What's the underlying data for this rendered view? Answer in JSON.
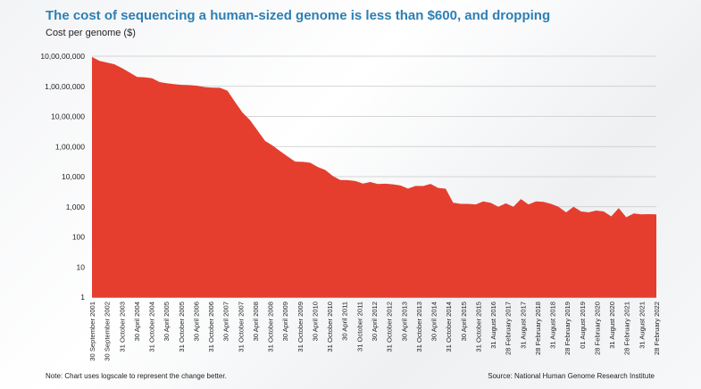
{
  "title": "The cost of sequencing a human-sized genome is less than $600, and dropping",
  "note": "Note: Chart uses logscale to represent the change better.",
  "source": "Source: National Human Genome Research Institute",
  "colors": {
    "title": "#2d7fb3",
    "area": "#e53e2f"
  },
  "chart_data": {
    "type": "area",
    "title": "The cost of sequencing a human-sized genome is less than $600, and dropping",
    "ylabel": "Cost per genome ($)",
    "xlabel": "",
    "y_scale": "log",
    "ylim": [
      1,
      100000000
    ],
    "grid": true,
    "y_ticks": [
      {
        "value": 1,
        "label": "1"
      },
      {
        "value": 10,
        "label": "10"
      },
      {
        "value": 100,
        "label": "100"
      },
      {
        "value": 1000,
        "label": "1,000"
      },
      {
        "value": 10000,
        "label": "10,000"
      },
      {
        "value": 100000,
        "label": "1,00,000"
      },
      {
        "value": 1000000,
        "label": "10,00,000"
      },
      {
        "value": 10000000,
        "label": "1,00,00,000"
      },
      {
        "value": 100000000,
        "label": "10,00,00,000"
      }
    ],
    "x_labels": [
      "30 September 2001",
      "30 September 2002",
      "31 October 2003",
      "30 April 2004",
      "31 October 2004",
      "30 April 2005",
      "31 October 2005",
      "30 April 2006",
      "31 October 2006",
      "30 April 2007",
      "31 October 2007",
      "30 April 2008",
      "31 October 2008",
      "30 April 2009",
      "31 October 2009",
      "30 April 2010",
      "31 October 2010",
      "30 April 2011",
      "31 October 2011",
      "30 April 2012",
      "31 October 2012",
      "30 April 2013",
      "31 October 2013",
      "30 April 2014",
      "31 October 2014",
      "30 April 2015",
      "31 October 2015",
      "31 August 2016",
      "28 February 2017",
      "31 August 2017",
      "28 February 2018",
      "31 August 2018",
      "28 February 2019",
      "01 August 2019",
      "28 February 2020",
      "31 August 2020",
      "28 February 2021",
      "31 August 2021",
      "28 February 2022"
    ],
    "series": [
      {
        "values": [
          95263072,
          70175437,
          61448422,
          53751684,
          40157554,
          28780376,
          20442576,
          19934346,
          18519312,
          13801124,
          12585659,
          11732535,
          11195440,
          10956184,
          10474556,
          9408739,
          9047003,
          8927342,
          7147571,
          3063820,
          1352982,
          752080,
          342502,
          154714,
          108065,
          70333,
          46774,
          31512,
          31125,
          29092,
          20963,
          16712,
          10497,
          7743,
          7666,
          7147,
          5901,
          6618,
          5671,
          5827,
          5550,
          5096,
          4008,
          4920,
          4905,
          5731,
          4211,
          3970,
          1363,
          1245,
          1245,
          1200,
          1500,
          1350,
          1000,
          1300,
          1000,
          1800,
          1200,
          1500,
          1450,
          1250,
          1000,
          650,
          1000,
          700,
          650,
          750,
          700,
          480,
          900,
          450,
          600,
          560,
          570,
          562
        ]
      }
    ]
  }
}
